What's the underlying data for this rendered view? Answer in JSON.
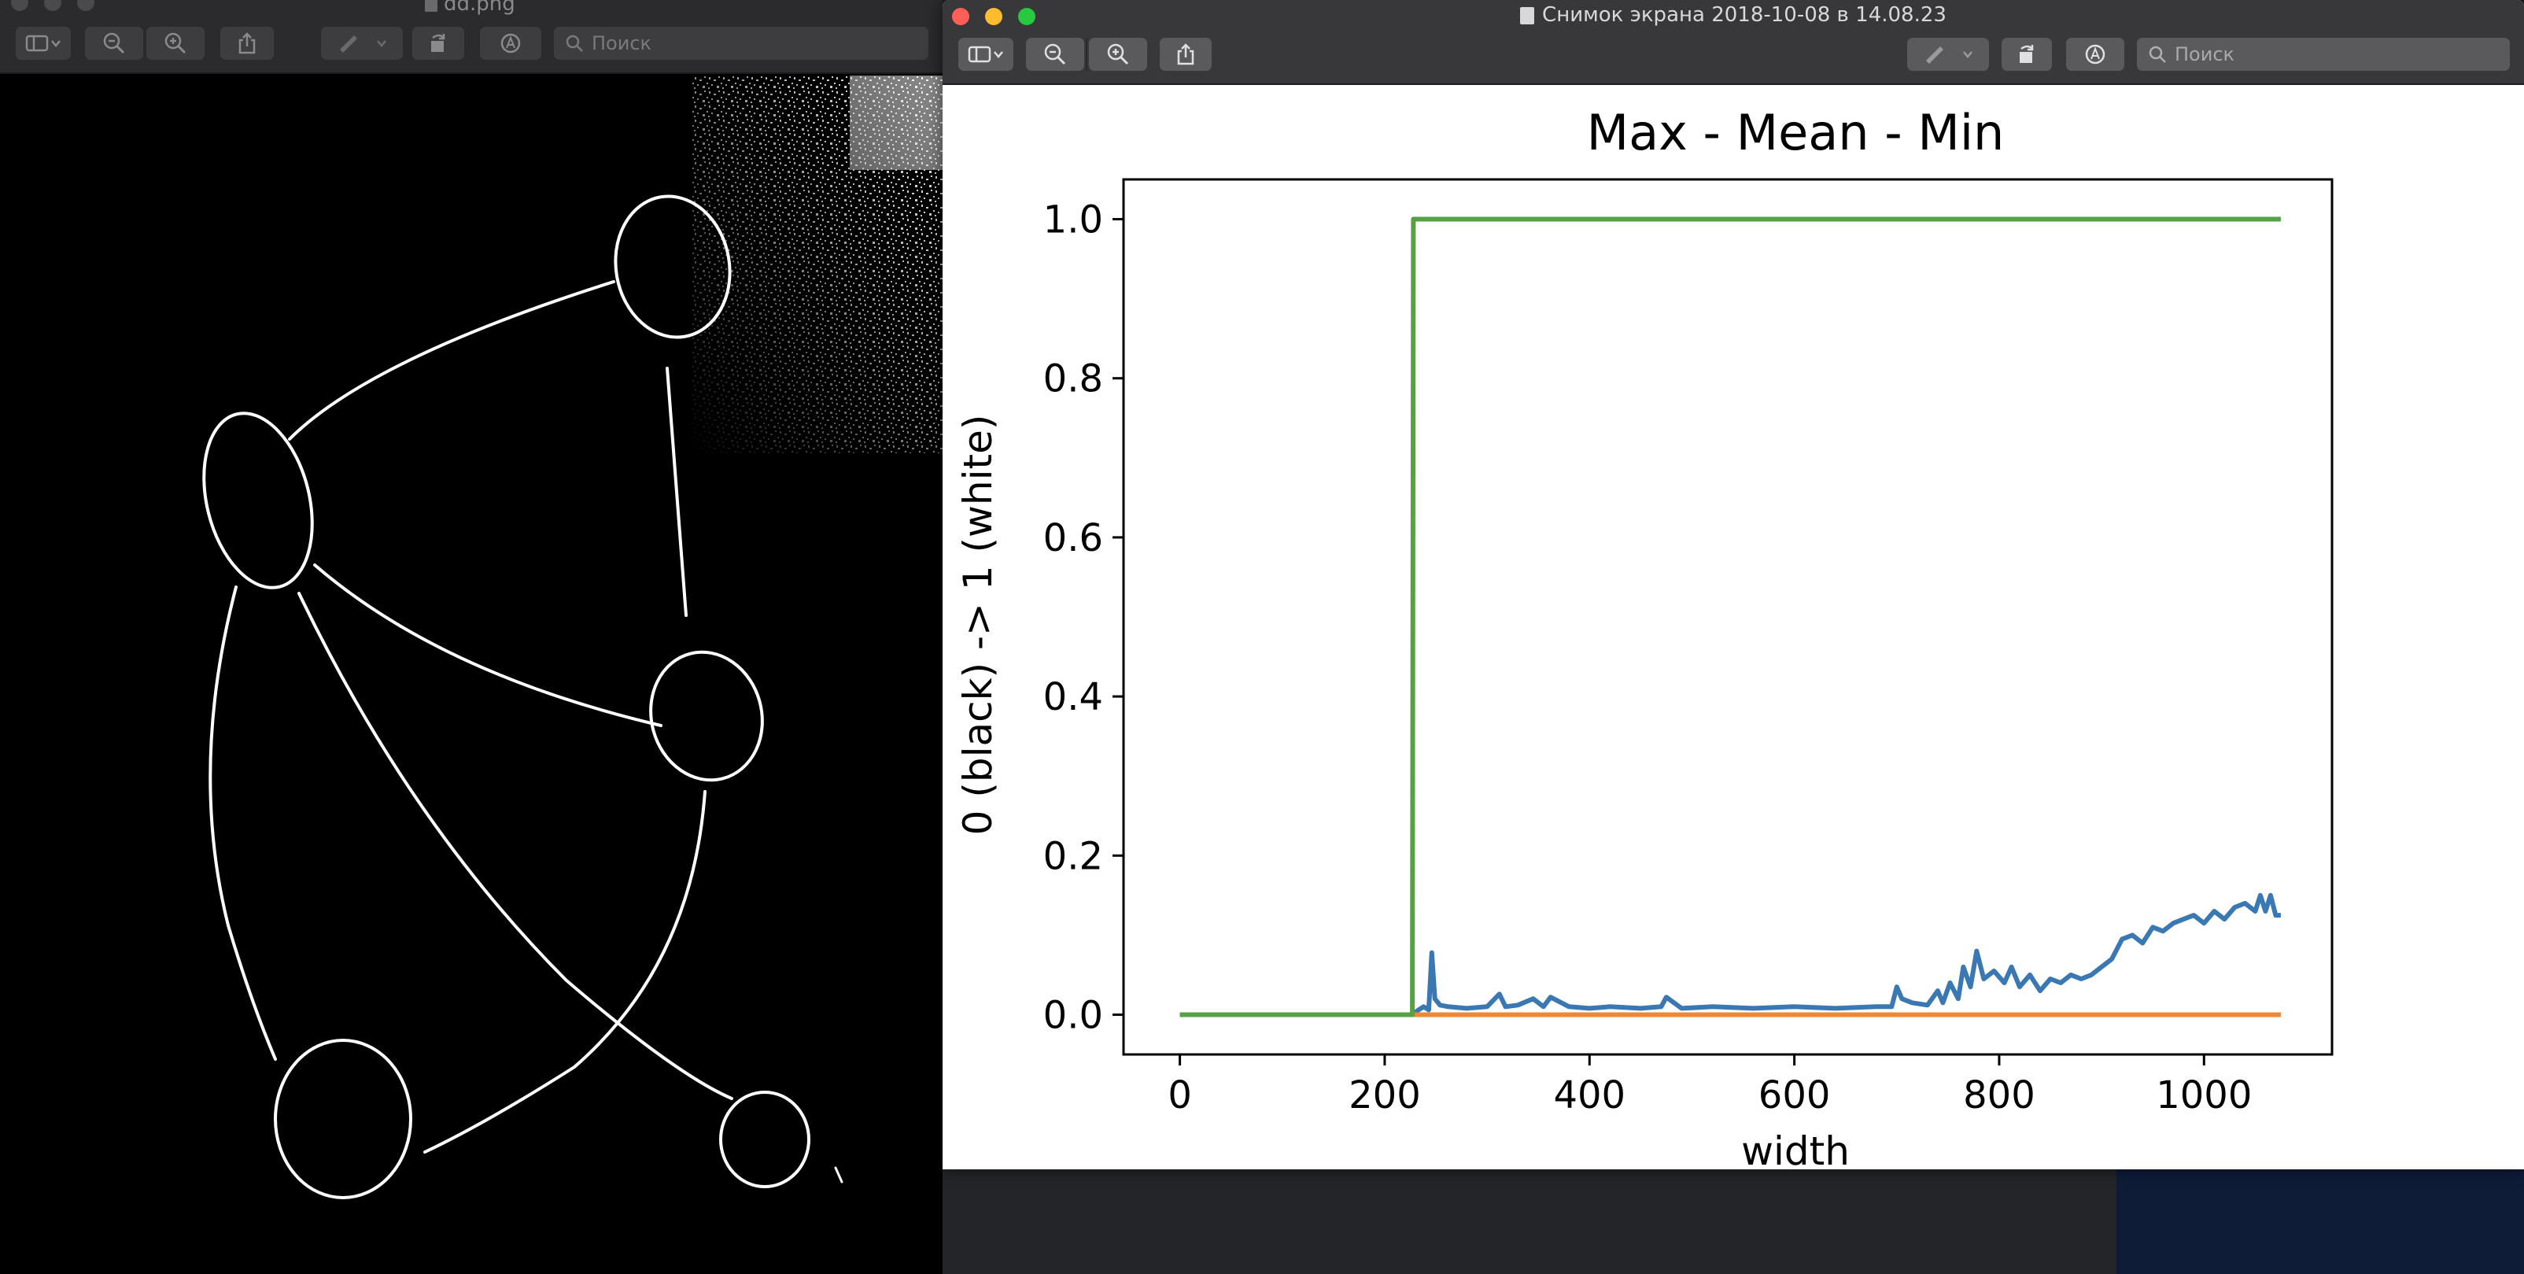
{
  "left_window": {
    "title": "dd.png",
    "search_placeholder": "Поиск"
  },
  "right_window": {
    "title": "Снимок экрана 2018-10-08 в 14.08.23",
    "search_placeholder": "Поиск"
  },
  "toolbar_icons": {
    "sidebar": "sidebar-icon",
    "zoom_out": "zoom-out-icon",
    "zoom_in": "zoom-in-icon",
    "share": "share-icon",
    "markup_pen": "pen-icon",
    "rotate": "rotate-icon",
    "annotate": "annotate-icon",
    "search": "search-icon"
  },
  "colors": {
    "series_max": "#55a144",
    "series_mean": "#3a78b4",
    "series_min": "#ef8733",
    "close": "#fe5f57",
    "minimize": "#febc2e",
    "zoom": "#28c840"
  },
  "chart_data": {
    "type": "line",
    "title": "Max - Mean - Min",
    "xlabel": "width",
    "ylabel": "0 (black) -> 1 (white)",
    "xlim": [
      -55,
      1125
    ],
    "ylim": [
      -0.05,
      1.05
    ],
    "xticks": [
      0,
      200,
      400,
      600,
      800,
      1000
    ],
    "xtick_labels": [
      "0",
      "200",
      "400",
      "600",
      "800",
      "1000"
    ],
    "yticks": [
      0.0,
      0.2,
      0.4,
      0.6,
      0.8,
      1.0
    ],
    "ytick_labels": [
      "0.0",
      "0.2",
      "0.4",
      "0.6",
      "0.8",
      "1.0"
    ],
    "grid": false,
    "series": [
      {
        "name": "max",
        "color": "#55a144",
        "x": [
          0,
          227,
          227,
          228,
          1075
        ],
        "y": [
          0,
          0,
          0,
          1.0,
          1.0
        ]
      },
      {
        "name": "mean",
        "color": "#3a78b4",
        "x": [
          0,
          227,
          232,
          238,
          243,
          246,
          249,
          254,
          262,
          280,
          300,
          312,
          318,
          330,
          345,
          355,
          362,
          380,
          400,
          420,
          450,
          470,
          475,
          490,
          520,
          560,
          600,
          640,
          680,
          695,
          700,
          705,
          715,
          730,
          740,
          745,
          752,
          760,
          765,
          772,
          778,
          785,
          795,
          805,
          812,
          820,
          830,
          840,
          850,
          860,
          870,
          880,
          890,
          900,
          910,
          920,
          930,
          940,
          950,
          960,
          970,
          980,
          990,
          1000,
          1010,
          1020,
          1030,
          1040,
          1050,
          1055,
          1060,
          1065,
          1070,
          1075
        ],
        "y": [
          0,
          0,
          0.005,
          0.01,
          0.006,
          0.078,
          0.02,
          0.012,
          0.01,
          0.008,
          0.01,
          0.026,
          0.01,
          0.012,
          0.02,
          0.01,
          0.022,
          0.01,
          0.008,
          0.01,
          0.008,
          0.01,
          0.022,
          0.008,
          0.01,
          0.008,
          0.01,
          0.008,
          0.01,
          0.01,
          0.035,
          0.02,
          0.015,
          0.012,
          0.03,
          0.015,
          0.04,
          0.02,
          0.06,
          0.035,
          0.08,
          0.045,
          0.055,
          0.04,
          0.06,
          0.035,
          0.05,
          0.03,
          0.045,
          0.04,
          0.05,
          0.045,
          0.05,
          0.06,
          0.07,
          0.095,
          0.1,
          0.09,
          0.11,
          0.105,
          0.115,
          0.12,
          0.125,
          0.115,
          0.13,
          0.12,
          0.135,
          0.14,
          0.13,
          0.15,
          0.13,
          0.15,
          0.125,
          0.125
        ]
      },
      {
        "name": "min",
        "color": "#ef8733",
        "x": [
          227,
          1075
        ],
        "y": [
          0,
          0
        ]
      }
    ]
  }
}
